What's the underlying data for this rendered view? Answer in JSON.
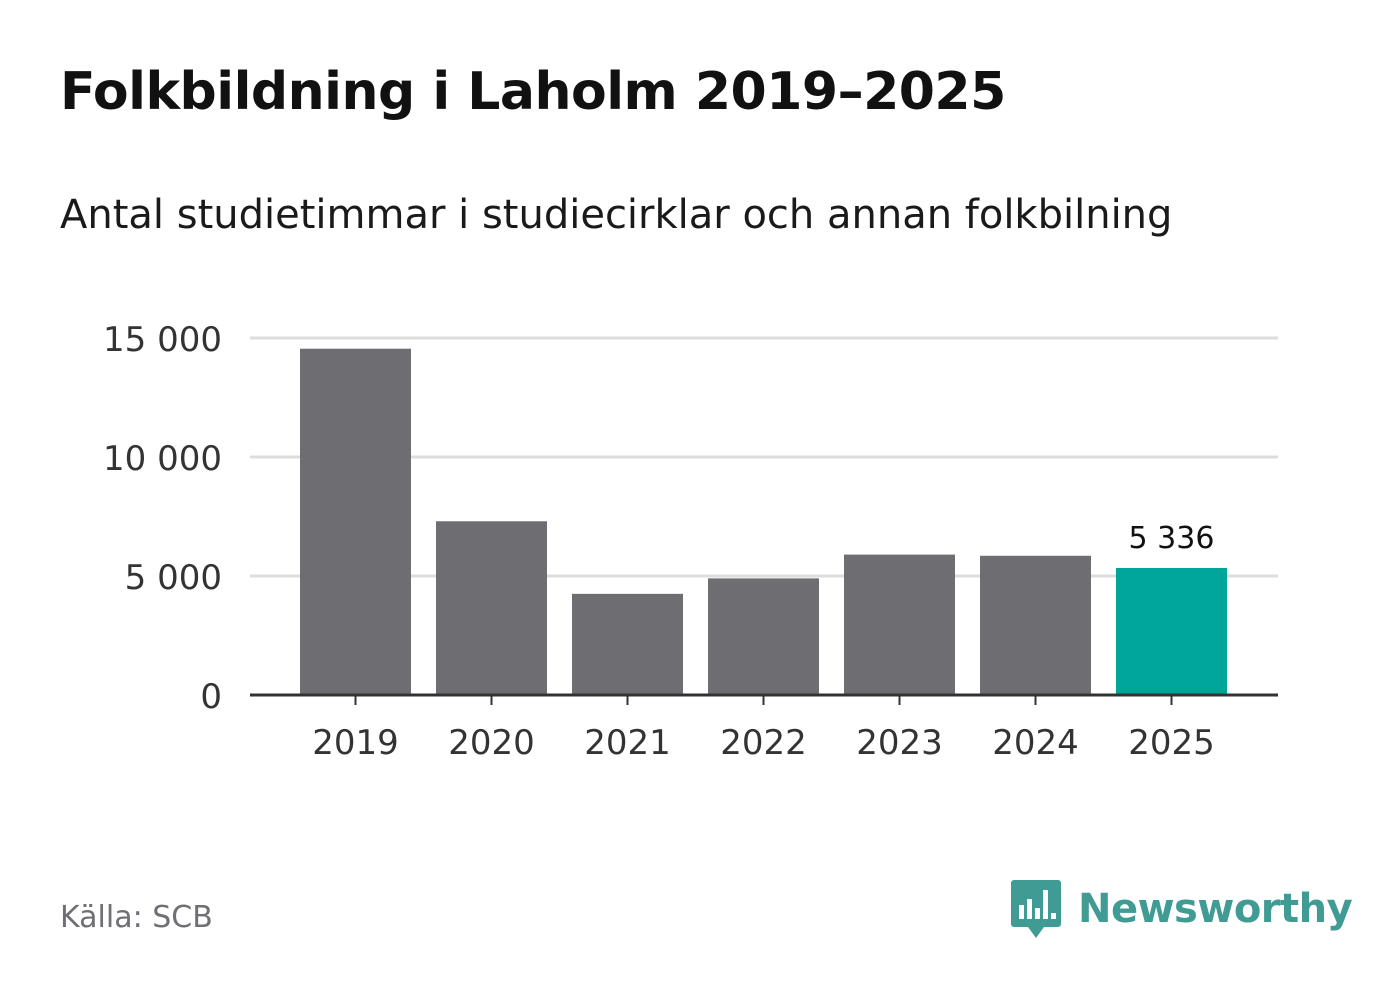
{
  "header": {
    "title": "Folkbildning i Laholm 2019–2025",
    "subtitle": "Antal studietimmar i studiecirklar och annan folkbilning"
  },
  "footer": {
    "source": "Källa: SCB",
    "brand": "Newsworthy",
    "brand_icon": "newsworthy-logo-icon"
  },
  "colors": {
    "bar": "#6e6d72",
    "highlight": "#00a59a",
    "grid": "#dddddd",
    "axis": "#333333",
    "brand": "#3f9b93"
  },
  "chart_data": {
    "type": "bar",
    "title": "Folkbildning i Laholm 2019–2025",
    "subtitle": "Antal studietimmar i studiecirklar och annan folkbilning",
    "xlabel": "",
    "ylabel": "",
    "categories": [
      "2019",
      "2020",
      "2021",
      "2022",
      "2023",
      "2024",
      "2025"
    ],
    "values": [
      14550,
      7300,
      4250,
      4900,
      5900,
      5850,
      5336
    ],
    "highlight_index": 6,
    "annotation": {
      "index": 6,
      "text": "5 336"
    },
    "ylim": [
      0,
      15000
    ],
    "yticks": [
      0,
      5000,
      10000,
      15000
    ],
    "ytick_labels": [
      "0",
      "5 000",
      "10 000",
      "15 000"
    ],
    "grid": true
  }
}
